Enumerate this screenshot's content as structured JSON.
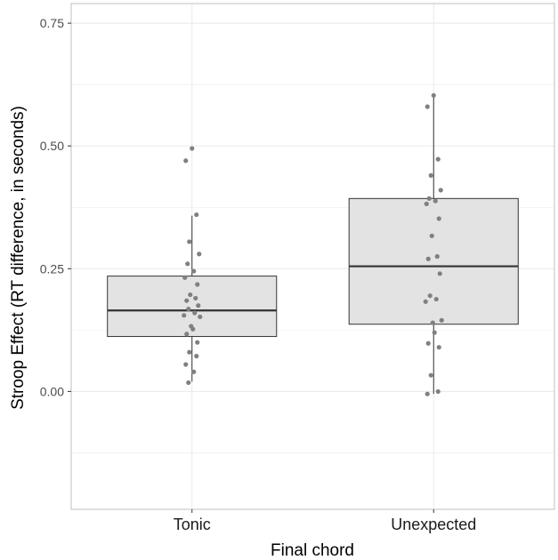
{
  "chart_data": {
    "type": "boxplot",
    "xlabel": "Final chord",
    "ylabel": "Stroop Effect (RT difference, in seconds)",
    "ylim": [
      -0.24,
      0.79
    ],
    "y_ticks": [
      0.0,
      0.25,
      0.5,
      0.75
    ],
    "y_tick_labels": [
      "0.00",
      "0.25",
      "0.50",
      "0.75"
    ],
    "categories": [
      "Tonic",
      "Unexpected"
    ],
    "grid": true,
    "colors": {
      "box_fill": "#e3e3e3",
      "box_stroke": "#333333",
      "point": "#808080",
      "grid": "#ebebeb"
    },
    "boxes": [
      {
        "category": "Tonic",
        "whisker_low": 0.02,
        "q1": 0.112,
        "median": 0.165,
        "q3": 0.235,
        "whisker_high": 0.358
      },
      {
        "category": "Unexpected",
        "whisker_low": -0.005,
        "q1": 0.137,
        "median": 0.255,
        "q3": 0.393,
        "whisker_high": 0.603
      }
    ],
    "points": [
      {
        "category": "Tonic",
        "values": [
          0.495,
          0.47,
          0.36,
          0.305,
          0.28,
          0.26,
          0.245,
          0.232,
          0.218,
          0.197,
          0.19,
          0.185,
          0.175,
          0.168,
          0.16,
          0.155,
          0.152,
          0.133,
          0.127,
          0.117,
          0.1,
          0.08,
          0.072,
          0.055,
          0.04,
          0.018
        ]
      },
      {
        "category": "Unexpected",
        "values": [
          0.603,
          0.58,
          0.473,
          0.44,
          0.41,
          0.393,
          0.388,
          0.382,
          0.352,
          0.317,
          0.275,
          0.27,
          0.24,
          0.195,
          0.188,
          0.183,
          0.145,
          0.14,
          0.12,
          0.098,
          0.09,
          0.033,
          0.0,
          -0.005
        ]
      }
    ]
  }
}
